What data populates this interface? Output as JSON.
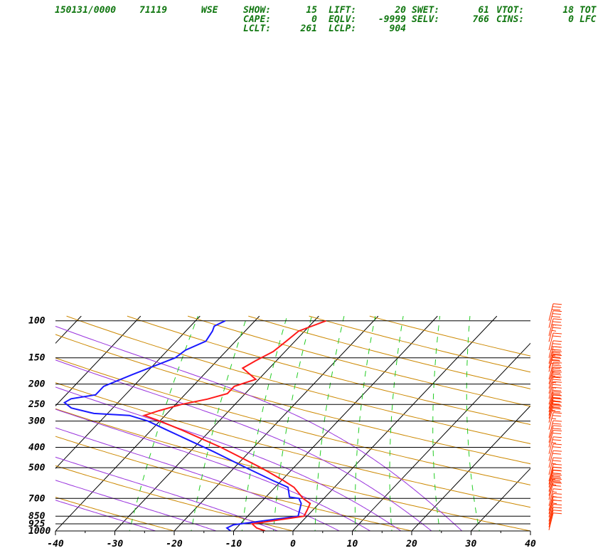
{
  "header": {
    "line1": [
      {
        "text": "150131/0000"
      },
      {
        "text": "71119"
      },
      {
        "text": "WSE"
      },
      {
        "text": "SHOW:"
      },
      {
        "text": "15"
      },
      {
        "text": "LIFT:"
      },
      {
        "text": "20"
      },
      {
        "text": "SWET:"
      },
      {
        "text": "61"
      },
      {
        "text": "VTOT:"
      },
      {
        "text": "18"
      },
      {
        "text": "TOT"
      }
    ],
    "line2": [
      {
        "text": "CAPE:"
      },
      {
        "text": "0"
      },
      {
        "text": "EQLV:"
      },
      {
        "text": "-9999"
      },
      {
        "text": "SELV:"
      },
      {
        "text": "766"
      },
      {
        "text": "CINS:"
      },
      {
        "text": "0"
      },
      {
        "text": "LFC"
      }
    ],
    "line3": [
      {
        "text": "LCLT:"
      },
      {
        "text": "261"
      },
      {
        "text": "LCLP:"
      },
      {
        "text": "904"
      }
    ]
  },
  "colors": {
    "temperature": "#ff1a1a",
    "dewpoint": "#1a1aff",
    "isotherm": "#000000",
    "dry_adiabat": "#cc8800",
    "moist_adiabat": "#9933dd",
    "mixing_ratio": "#22cc22",
    "wind_barb": "#ff3300",
    "header": "#117711"
  },
  "chart_data": {
    "type": "skew-t log-p",
    "title": "150131/0000 71119 WSE",
    "x_axis": {
      "label": "",
      "ticks": [
        "-40",
        "-30",
        "-20",
        "-10",
        "0",
        "10",
        "20",
        "30",
        "40"
      ],
      "range": [
        -40,
        40
      ],
      "units": "degC"
    },
    "y_axis": {
      "label": "",
      "ticks": [
        "100",
        "150",
        "200",
        "250",
        "300",
        "400",
        "500",
        "700",
        "850",
        "925",
        "1000"
      ],
      "range": [
        1000,
        100
      ],
      "scale": "log",
      "units": "hPa"
    },
    "temperature_profile": [
      {
        "p": 1000,
        "t": -4.7
      },
      {
        "p": 968,
        "t": -6.6
      },
      {
        "p": 925,
        "t": -8.0
      },
      {
        "p": 850,
        "t": -0.5
      },
      {
        "p": 790,
        "t": -1.0
      },
      {
        "p": 740,
        "t": -1.5
      },
      {
        "p": 700,
        "t": -3.5
      },
      {
        "p": 620,
        "t": -6.8
      },
      {
        "p": 575,
        "t": -9.7
      },
      {
        "p": 500,
        "t": -15.5
      },
      {
        "p": 400,
        "t": -25.5
      },
      {
        "p": 330,
        "t": -35.0
      },
      {
        "p": 300,
        "t": -40.0
      },
      {
        "p": 282,
        "t": -43.5
      },
      {
        "p": 268,
        "t": -41.8
      },
      {
        "p": 250,
        "t": -39.0
      },
      {
        "p": 236,
        "t": -35.5
      },
      {
        "p": 222,
        "t": -33.0
      },
      {
        "p": 205,
        "t": -33.0
      },
      {
        "p": 190,
        "t": -30.5
      },
      {
        "p": 168,
        "t": -34.5
      },
      {
        "p": 155,
        "t": -33.5
      },
      {
        "p": 140,
        "t": -32.0
      },
      {
        "p": 126,
        "t": -31.5
      },
      {
        "p": 112,
        "t": -31.0
      },
      {
        "p": 100,
        "t": -28.0
      }
    ],
    "dewpoint_profile": [
      {
        "p": 1000,
        "t": -10.5
      },
      {
        "p": 968,
        "t": -11.6
      },
      {
        "p": 935,
        "t": -11.0
      },
      {
        "p": 850,
        "t": -1.5
      },
      {
        "p": 740,
        "t": -3.0
      },
      {
        "p": 700,
        "t": -4.2
      },
      {
        "p": 690,
        "t": -6.0
      },
      {
        "p": 620,
        "t": -7.8
      },
      {
        "p": 575,
        "t": -11.5
      },
      {
        "p": 500,
        "t": -18.0
      },
      {
        "p": 420,
        "t": -26.0
      },
      {
        "p": 330,
        "t": -37.5
      },
      {
        "p": 300,
        "t": -42.0
      },
      {
        "p": 282,
        "t": -46.0
      },
      {
        "p": 276,
        "t": -52.3
      },
      {
        "p": 260,
        "t": -57.0
      },
      {
        "p": 245,
        "t": -59.0
      },
      {
        "p": 235,
        "t": -58.5
      },
      {
        "p": 225,
        "t": -55.0
      },
      {
        "p": 205,
        "t": -55.0
      },
      {
        "p": 180,
        "t": -52.0
      },
      {
        "p": 150,
        "t": -47.5
      },
      {
        "p": 138,
        "t": -47.0
      },
      {
        "p": 125,
        "t": -45.0
      },
      {
        "p": 112,
        "t": -45.5
      },
      {
        "p": 106,
        "t": -46.0
      },
      {
        "p": 100,
        "t": -45.0
      }
    ],
    "wind_barbs": [
      {
        "p": 100,
        "speed": 30
      },
      {
        "p": 108,
        "speed": 30
      },
      {
        "p": 118,
        "speed": 25
      },
      {
        "p": 126,
        "speed": 25
      },
      {
        "p": 138,
        "speed": 20
      },
      {
        "p": 150,
        "speed": 35
      },
      {
        "p": 160,
        "speed": 35
      },
      {
        "p": 168,
        "speed": 40
      },
      {
        "p": 175,
        "speed": 40
      },
      {
        "p": 190,
        "speed": 35
      },
      {
        "p": 200,
        "speed": 35
      },
      {
        "p": 210,
        "speed": 30
      },
      {
        "p": 222,
        "speed": 25
      },
      {
        "p": 235,
        "speed": 25
      },
      {
        "p": 250,
        "speed": 30
      },
      {
        "p": 262,
        "speed": 35
      },
      {
        "p": 272,
        "speed": 40
      },
      {
        "p": 282,
        "speed": 40
      },
      {
        "p": 292,
        "speed": 35
      },
      {
        "p": 305,
        "speed": 30
      },
      {
        "p": 330,
        "speed": 25
      },
      {
        "p": 360,
        "speed": 20
      },
      {
        "p": 380,
        "speed": 20
      },
      {
        "p": 400,
        "speed": 20
      },
      {
        "p": 430,
        "speed": 25
      },
      {
        "p": 465,
        "speed": 20
      },
      {
        "p": 500,
        "speed": 20
      },
      {
        "p": 540,
        "speed": 25
      },
      {
        "p": 580,
        "speed": 30
      },
      {
        "p": 600,
        "speed": 30
      },
      {
        "p": 620,
        "speed": 35
      },
      {
        "p": 650,
        "speed": 30
      },
      {
        "p": 680,
        "speed": 25
      },
      {
        "p": 710,
        "speed": 20
      },
      {
        "p": 760,
        "speed": 15
      },
      {
        "p": 800,
        "speed": 15
      },
      {
        "p": 830,
        "speed": 15
      },
      {
        "p": 860,
        "speed": 15
      },
      {
        "p": 900,
        "speed": 10
      },
      {
        "p": 930,
        "speed": 10
      },
      {
        "p": 960,
        "speed": 10
      },
      {
        "p": 990,
        "speed": 10
      }
    ],
    "grid": true
  }
}
